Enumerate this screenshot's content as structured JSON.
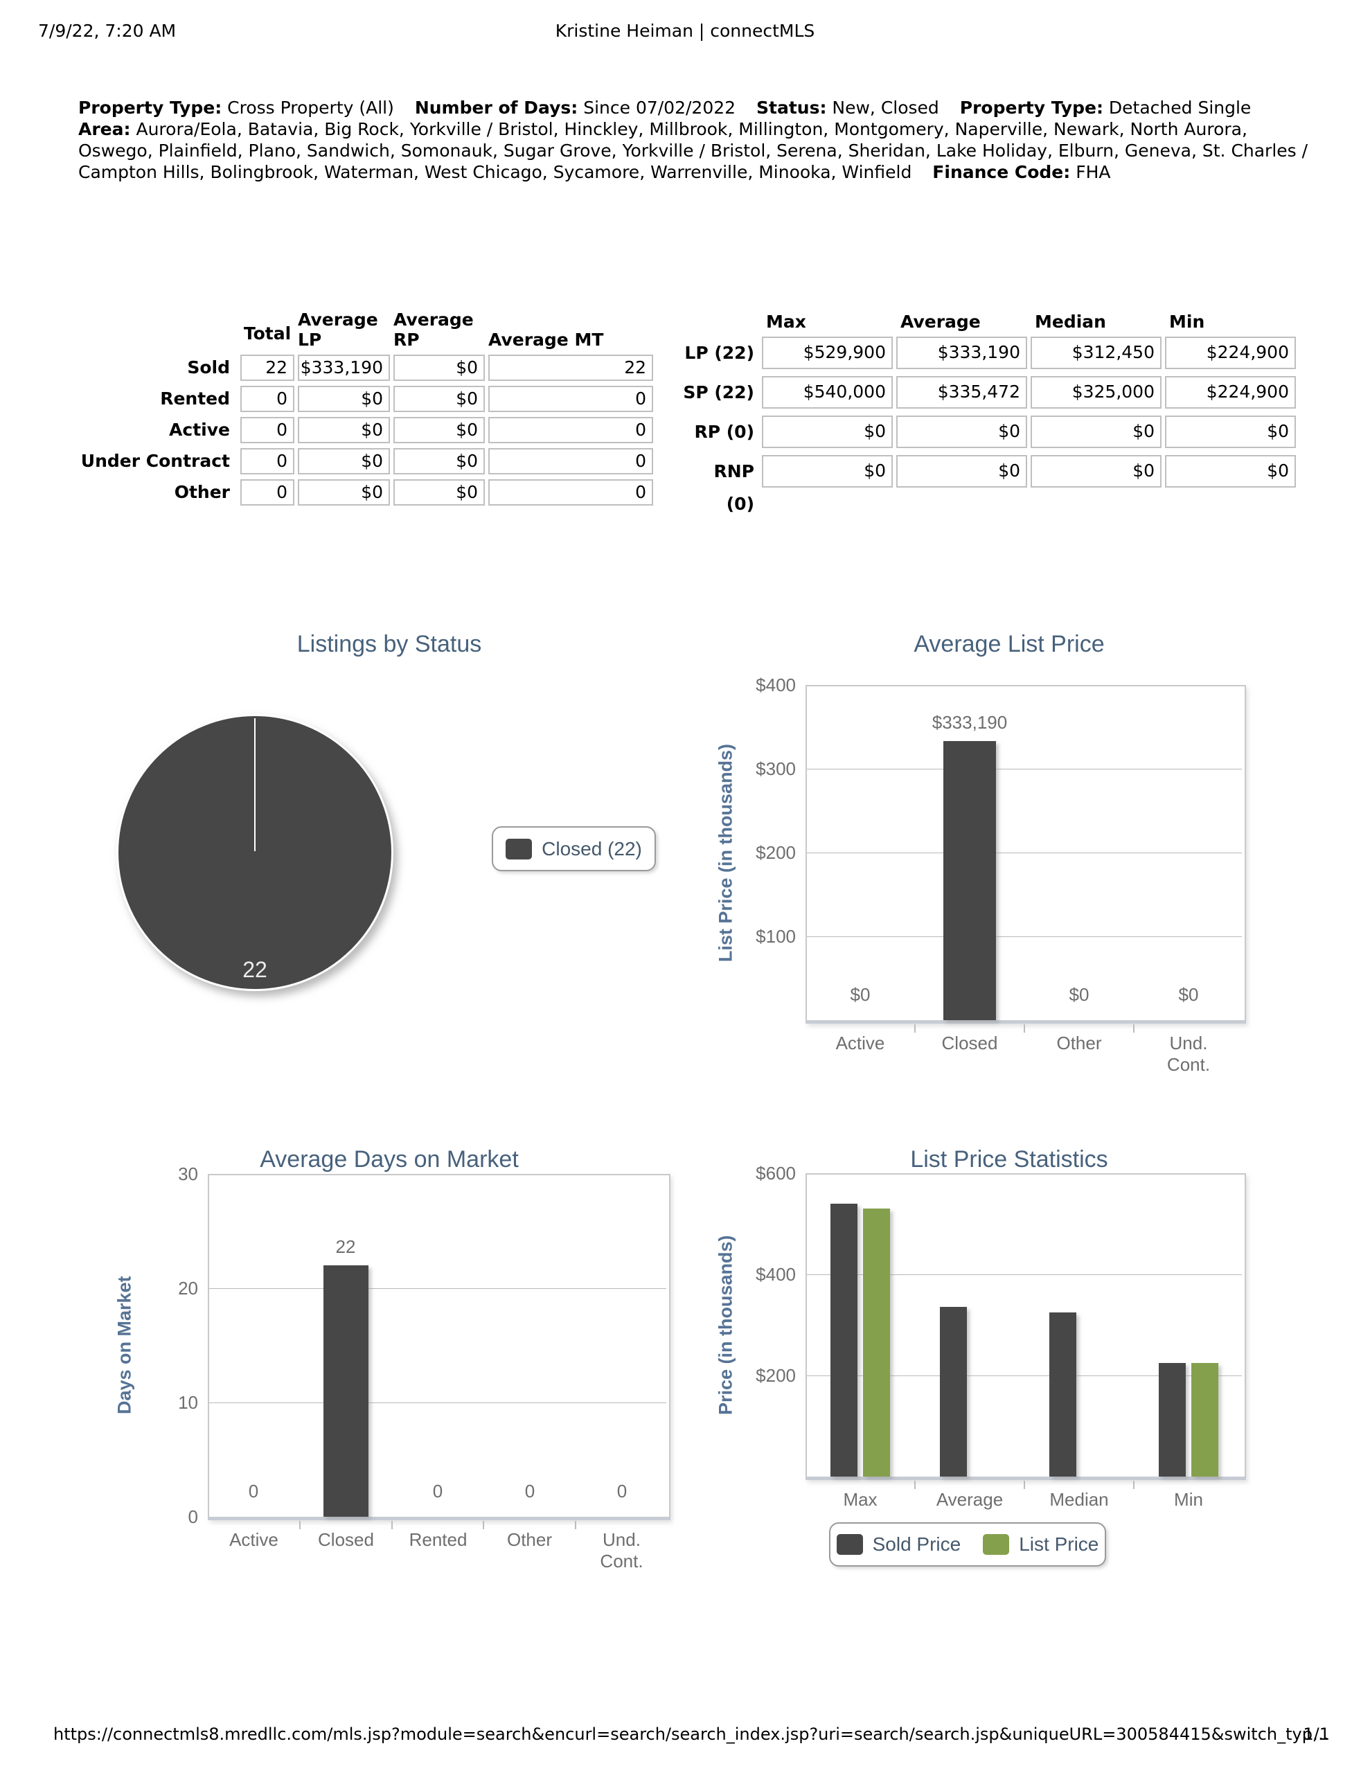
{
  "page": {
    "printed_at": "7/9/22, 7:20 AM",
    "doc_title": "Kristine Heiman | connectMLS",
    "footer_url": "https://connectmls8.mredllc.com/mls.jsp?module=search&encurl=search/search_index.jsp?uri=search/search.jsp&uniqueURL=300584415&switch_typ…",
    "page_number": "1/1"
  },
  "criteria": {
    "segments": [
      {
        "label": "Property Type:",
        "value": "Cross Property (All)"
      },
      {
        "label": "Number of Days:",
        "value": "Since 07/02/2022"
      },
      {
        "label": "Status:",
        "value": "New, Closed"
      },
      {
        "label": "Property Type:",
        "value": "Detached Single"
      },
      {
        "label": "Area:",
        "value": "Aurora/Eola, Batavia, Big Rock, Yorkville / Bristol, Hinckley, Millbrook, Millington, Montgomery, Naperville, Newark, North Aurora, Oswego, Plainfield, Plano, Sandwich, Somonauk, Sugar Grove, Yorkville / Bristol, Serena, Sheridan, Lake Holiday, Elburn, Geneva, St. Charles / Campton Hills, Bolingbrook, Waterman, West Chicago, Sycamore, Warrenville, Minooka, Winfield"
      },
      {
        "label": "Finance Code:",
        "value": "FHA"
      }
    ]
  },
  "status_table": {
    "headers": [
      "Total",
      "Average LP",
      "Average RP",
      "Average MT"
    ],
    "rows": [
      {
        "label": "Sold",
        "values": [
          "22",
          "$333,190",
          "$0",
          "22"
        ]
      },
      {
        "label": "Rented",
        "values": [
          "0",
          "$0",
          "$0",
          "0"
        ]
      },
      {
        "label": "Active",
        "values": [
          "0",
          "$0",
          "$0",
          "0"
        ]
      },
      {
        "label": "Under Contract",
        "values": [
          "0",
          "$0",
          "$0",
          "0"
        ]
      },
      {
        "label": "Other",
        "values": [
          "0",
          "$0",
          "$0",
          "0"
        ]
      }
    ]
  },
  "price_table": {
    "headers": [
      "Max",
      "Average",
      "Median",
      "Min"
    ],
    "rows": [
      {
        "label": "LP (22)",
        "values": [
          "$529,900",
          "$333,190",
          "$312,450",
          "$224,900"
        ]
      },
      {
        "label": "SP (22)",
        "values": [
          "$540,000",
          "$335,472",
          "$325,000",
          "$224,900"
        ]
      },
      {
        "label": "RP (0)",
        "values": [
          "$0",
          "$0",
          "$0",
          "$0"
        ]
      },
      {
        "label": "RNP (0)",
        "values": [
          "$0",
          "$0",
          "$0",
          "$0"
        ]
      }
    ]
  },
  "chart_data": [
    {
      "id": "listings-by-status",
      "type": "pie",
      "title": "Listings by Status",
      "slices": [
        {
          "label": "Closed",
          "value": 22,
          "color": "#474747"
        }
      ],
      "slice_label": "22",
      "legend": [
        {
          "label": "Closed (22)",
          "color": "#474747"
        }
      ],
      "legend_position": "right"
    },
    {
      "id": "average-list-price",
      "type": "bar",
      "title": "Average List Price",
      "ylabel": "List Price (in thousands)",
      "categories": [
        "Active",
        "Closed",
        "Other",
        "Und.\nCont."
      ],
      "values": [
        0,
        333.19,
        0,
        0
      ],
      "value_labels": [
        "$0",
        "$333,190",
        "$0",
        "$0"
      ],
      "ylim": [
        0,
        400
      ],
      "yticks": [
        {
          "value": 400,
          "label": "$400"
        },
        {
          "value": 300,
          "label": "$300"
        },
        {
          "value": 200,
          "label": "$200"
        },
        {
          "value": 100,
          "label": "$100"
        }
      ],
      "bar_color": "#474747",
      "grid": true
    },
    {
      "id": "average-days-on-market",
      "type": "bar",
      "title": "Average Days on Market",
      "ylabel": "Days on Market",
      "categories": [
        "Active",
        "Closed",
        "Rented",
        "Other",
        "Und.\nCont."
      ],
      "values": [
        0,
        22,
        0,
        0,
        0
      ],
      "value_labels": [
        "0",
        "22",
        "0",
        "0",
        "0"
      ],
      "ylim": [
        0,
        30
      ],
      "yticks": [
        {
          "value": 30,
          "label": "30"
        },
        {
          "value": 20,
          "label": "20"
        },
        {
          "value": 10,
          "label": "10"
        },
        {
          "value": 0,
          "label": "0"
        }
      ],
      "bar_color": "#474747",
      "grid": true
    },
    {
      "id": "list-price-statistics",
      "type": "bar",
      "title": "List Price Statistics",
      "ylabel": "Price (in thousands)",
      "categories": [
        "Max",
        "Average",
        "Median",
        "Min"
      ],
      "series": [
        {
          "name": "Sold Price",
          "color": "#474747",
          "values": [
            540,
            335.472,
            325,
            224.9
          ]
        },
        {
          "name": "List Price",
          "color": "#84a04c",
          "values": [
            529.9,
            null,
            null,
            224.9
          ]
        }
      ],
      "ylim": [
        0,
        600
      ],
      "yticks": [
        {
          "value": 600,
          "label": "$600"
        },
        {
          "value": 400,
          "label": "$400"
        },
        {
          "value": 200,
          "label": "$200"
        }
      ],
      "legend": [
        {
          "label": "Sold Price",
          "color": "#474747"
        },
        {
          "label": "List Price",
          "color": "#84a04c"
        }
      ],
      "legend_position": "bottom",
      "grid": true
    }
  ]
}
